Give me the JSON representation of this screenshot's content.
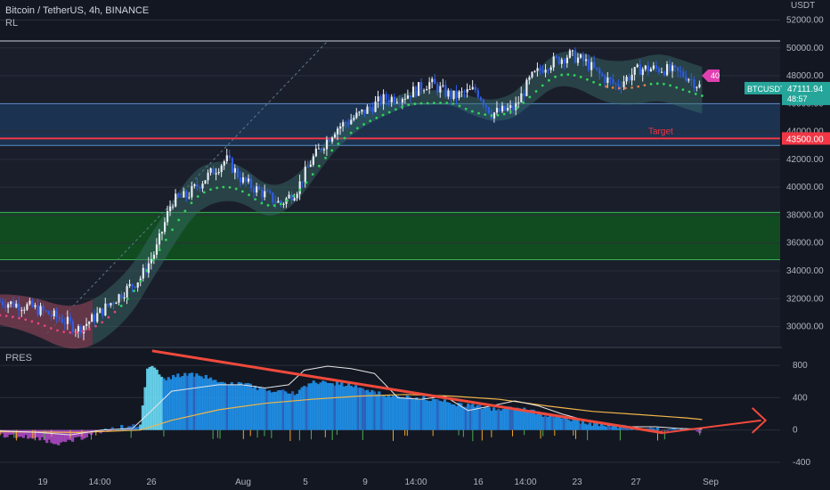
{
  "header": {
    "symbol_title": "Bitcoin / TetherUS, 4h, BINANCE",
    "indicator_main": "RL",
    "indicator_sub": "PRES",
    "currency": "USDT"
  },
  "price_badge": {
    "symbol": "BTCUSDT",
    "price": "47111.94",
    "countdown": "48:57",
    "color": "#26a69a"
  },
  "target": {
    "label": "Target",
    "price_label": "43500.00",
    "value": 43500,
    "color": "#f23645"
  },
  "marker_label": "40",
  "chart_data": [
    {
      "type": "candlestick",
      "symbol": "BTCUSDT",
      "timeframe": "4h",
      "x_ticks": [
        "19",
        "14:00",
        "26",
        "Aug",
        "5",
        "9",
        "14:00",
        "16",
        "14:00",
        "23",
        "27",
        "Sep"
      ],
      "y_ticks": [
        30000,
        32000,
        34000,
        36000,
        38000,
        40000,
        42000,
        44000,
        46000,
        48000,
        50000,
        52000
      ],
      "ylim": [
        28500,
        52800
      ],
      "current_price": 47111.94,
      "horizontal_levels": [
        50500,
        46000,
        43500,
        43000,
        38200,
        34800
      ],
      "zones": [
        {
          "from": 43000,
          "to": 46000,
          "color": "#1c3a5e"
        },
        {
          "from": 34800,
          "to": 38200,
          "color": "#0e5c1e"
        }
      ],
      "trend_line_dashed": {
        "from": [
          0.06,
          29500
        ],
        "to": [
          0.42,
          50500
        ]
      },
      "close_path": [
        [
          0.0,
          31800
        ],
        [
          0.04,
          31400
        ],
        [
          0.08,
          30500
        ],
        [
          0.1,
          29800
        ],
        [
          0.12,
          30600
        ],
        [
          0.15,
          32100
        ],
        [
          0.18,
          33500
        ],
        [
          0.2,
          35500
        ],
        [
          0.22,
          39000
        ],
        [
          0.24,
          39400
        ],
        [
          0.26,
          40500
        ],
        [
          0.29,
          42000
        ],
        [
          0.31,
          40500
        ],
        [
          0.33,
          39800
        ],
        [
          0.36,
          38800
        ],
        [
          0.38,
          39800
        ],
        [
          0.4,
          42000
        ],
        [
          0.43,
          44200
        ],
        [
          0.46,
          45200
        ],
        [
          0.49,
          46300
        ],
        [
          0.52,
          46600
        ],
        [
          0.55,
          47500
        ],
        [
          0.58,
          46500
        ],
        [
          0.61,
          47000
        ],
        [
          0.63,
          45300
        ],
        [
          0.66,
          45700
        ],
        [
          0.68,
          47800
        ],
        [
          0.7,
          48800
        ],
        [
          0.73,
          49500
        ],
        [
          0.75,
          49000
        ],
        [
          0.77,
          48000
        ],
        [
          0.79,
          47300
        ],
        [
          0.82,
          48500
        ],
        [
          0.85,
          48500
        ],
        [
          0.88,
          48000
        ],
        [
          0.9,
          47100
        ]
      ]
    },
    {
      "type": "area",
      "name": "PRES",
      "y_ticks": [
        -400,
        0,
        400,
        800
      ],
      "ylim": [
        -500,
        1000
      ],
      "trend_line": {
        "from": [
          0.195,
          980
        ],
        "to": [
          0.93,
          130
        ]
      },
      "area_path": [
        [
          0.0,
          -60
        ],
        [
          0.04,
          -90
        ],
        [
          0.08,
          -170
        ],
        [
          0.1,
          -110
        ],
        [
          0.12,
          -40
        ],
        [
          0.15,
          30
        ],
        [
          0.18,
          60
        ],
        [
          0.19,
          820
        ],
        [
          0.21,
          640
        ],
        [
          0.24,
          690
        ],
        [
          0.27,
          650
        ],
        [
          0.29,
          560
        ],
        [
          0.31,
          580
        ],
        [
          0.33,
          520
        ],
        [
          0.35,
          490
        ],
        [
          0.38,
          460
        ],
        [
          0.4,
          600
        ],
        [
          0.43,
          580
        ],
        [
          0.46,
          540
        ],
        [
          0.49,
          440
        ],
        [
          0.52,
          400
        ],
        [
          0.55,
          390
        ],
        [
          0.58,
          330
        ],
        [
          0.61,
          300
        ],
        [
          0.63,
          260
        ],
        [
          0.66,
          280
        ],
        [
          0.68,
          240
        ],
        [
          0.7,
          180
        ],
        [
          0.73,
          130
        ],
        [
          0.75,
          90
        ],
        [
          0.78,
          50
        ],
        [
          0.81,
          30
        ],
        [
          0.84,
          20
        ],
        [
          0.87,
          10
        ],
        [
          0.9,
          -20
        ]
      ],
      "white_path": [
        [
          0.0,
          -10
        ],
        [
          0.05,
          -30
        ],
        [
          0.09,
          -60
        ],
        [
          0.13,
          0
        ],
        [
          0.17,
          20
        ],
        [
          0.19,
          200
        ],
        [
          0.22,
          480
        ],
        [
          0.25,
          520
        ],
        [
          0.28,
          560
        ],
        [
          0.31,
          560
        ],
        [
          0.34,
          520
        ],
        [
          0.37,
          560
        ],
        [
          0.39,
          740
        ],
        [
          0.42,
          790
        ],
        [
          0.45,
          760
        ],
        [
          0.48,
          700
        ],
        [
          0.51,
          400
        ],
        [
          0.54,
          380
        ],
        [
          0.57,
          420
        ],
        [
          0.6,
          240
        ],
        [
          0.63,
          300
        ],
        [
          0.66,
          360
        ],
        [
          0.69,
          300
        ],
        [
          0.72,
          200
        ],
        [
          0.75,
          120
        ],
        [
          0.78,
          60
        ],
        [
          0.81,
          40
        ],
        [
          0.84,
          40
        ],
        [
          0.87,
          20
        ],
        [
          0.9,
          10
        ]
      ],
      "ma_path": [
        [
          0.0,
          -20
        ],
        [
          0.1,
          -30
        ],
        [
          0.18,
          0
        ],
        [
          0.22,
          120
        ],
        [
          0.28,
          250
        ],
        [
          0.34,
          330
        ],
        [
          0.4,
          380
        ],
        [
          0.46,
          420
        ],
        [
          0.52,
          440
        ],
        [
          0.58,
          420
        ],
        [
          0.64,
          380
        ],
        [
          0.7,
          300
        ],
        [
          0.76,
          230
        ],
        [
          0.82,
          190
        ],
        [
          0.88,
          150
        ],
        [
          0.9,
          130
        ]
      ]
    }
  ]
}
